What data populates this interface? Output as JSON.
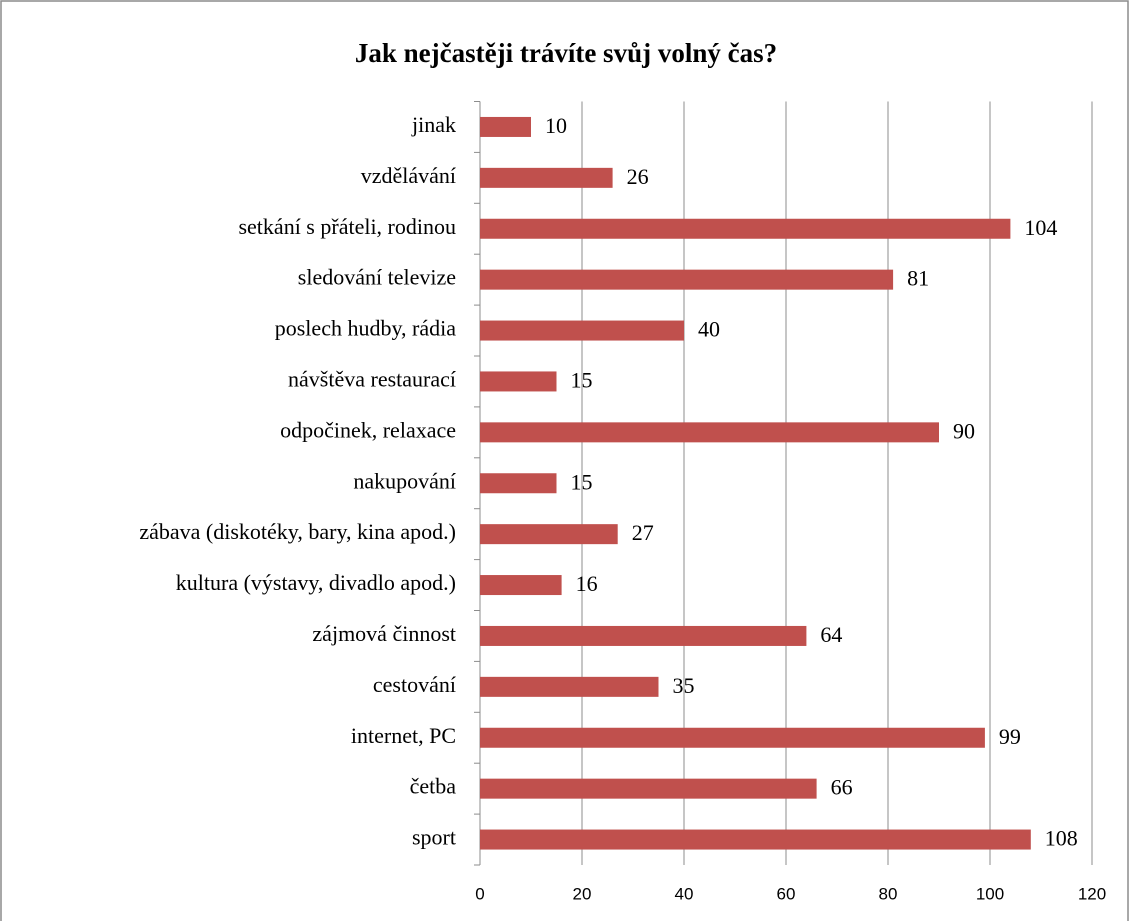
{
  "chart_data": {
    "type": "bar",
    "orientation": "horizontal",
    "title": "Jak nejčastěji trávíte svůj volný čas?",
    "categories": [
      "jinak",
      "vzdělávání",
      "setkání s přáteli, rodinou",
      "sledování televize",
      "poslech hudby, rádia",
      "návštěva restaurací",
      "odpočinek, relaxace",
      "nakupování",
      "zábava (diskotéky, bary, kina apod.)",
      "kultura (výstavy, divadlo apod.)",
      "zájmová činnost",
      "cestování",
      "internet, PC",
      "četba",
      "sport"
    ],
    "values": [
      10,
      26,
      104,
      81,
      40,
      15,
      90,
      15,
      27,
      16,
      64,
      35,
      99,
      66,
      108
    ],
    "color": "#c0504d",
    "xlim": [
      0,
      120
    ],
    "xticks": [
      0,
      20,
      40,
      60,
      80,
      100,
      120
    ],
    "grid": true
  }
}
